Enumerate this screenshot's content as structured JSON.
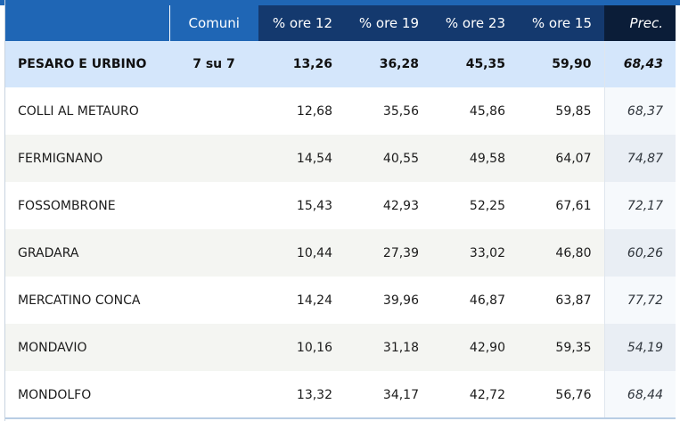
{
  "header": {
    "comuni": "Comuni",
    "ore12": "% ore 12",
    "ore19": "% ore 19",
    "ore23": "% ore 23",
    "ore15": "% ore 15",
    "prec": "Prec."
  },
  "summary": {
    "name": "PESARO E URBINO",
    "comuni": "7 su 7",
    "ore12": "13,26",
    "ore19": "36,28",
    "ore23": "45,35",
    "ore15": "59,90",
    "prec": "68,43"
  },
  "rows": [
    {
      "name": "COLLI AL METAURO",
      "ore12": "12,68",
      "ore19": "35,56",
      "ore23": "45,86",
      "ore15": "59,85",
      "prec": "68,37"
    },
    {
      "name": "FERMIGNANO",
      "ore12": "14,54",
      "ore19": "40,55",
      "ore23": "49,58",
      "ore15": "64,07",
      "prec": "74,87"
    },
    {
      "name": "FOSSOMBRONE",
      "ore12": "15,43",
      "ore19": "42,93",
      "ore23": "52,25",
      "ore15": "67,61",
      "prec": "72,17"
    },
    {
      "name": "GRADARA",
      "ore12": "10,44",
      "ore19": "27,39",
      "ore23": "33,02",
      "ore15": "46,80",
      "prec": "60,26"
    },
    {
      "name": "MERCATINO CONCA",
      "ore12": "14,24",
      "ore19": "39,96",
      "ore23": "46,87",
      "ore15": "63,87",
      "prec": "77,72"
    },
    {
      "name": "MONDAVIO",
      "ore12": "10,16",
      "ore19": "31,18",
      "ore23": "42,90",
      "ore15": "59,35",
      "prec": "54,19"
    },
    {
      "name": "MONDOLFO",
      "ore12": "13,32",
      "ore19": "34,17",
      "ore23": "42,72",
      "ore15": "56,76",
      "prec": "68,44"
    }
  ],
  "colors": {
    "header_blue": "#1f66b5",
    "header_navy": "#14396e",
    "header_dark": "#0b1d38",
    "summary_bg": "#d4e6fb",
    "stripe_bg": "#f4f5f2"
  }
}
